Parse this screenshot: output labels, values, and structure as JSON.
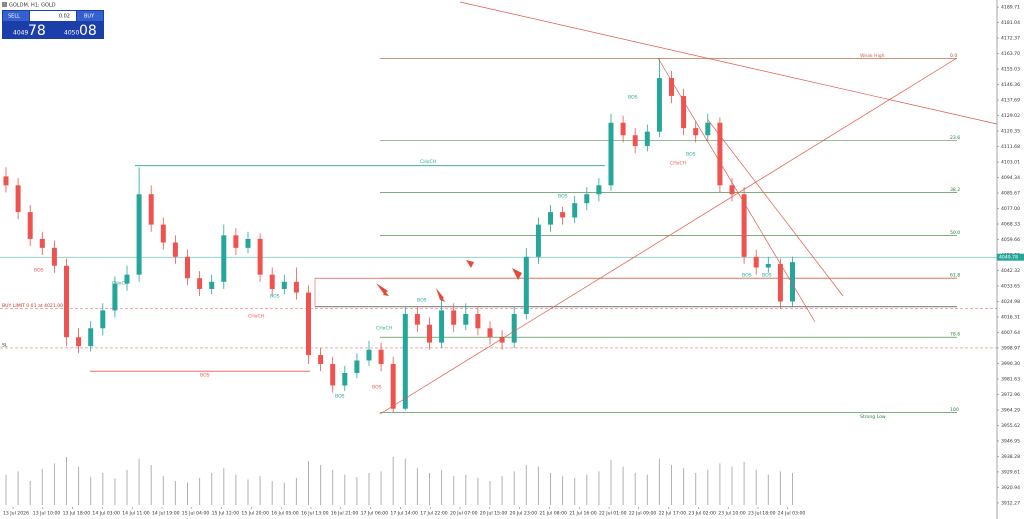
{
  "chart_data": {
    "type": "candlestick",
    "title": "GOLDM, H1: GOLD",
    "up_color": "#26a69a",
    "down_color": "#ef5350",
    "ylim": [
      3910,
      4192
    ],
    "yticks": [
      3912.27,
      3920.94,
      3929.61,
      3938.28,
      3946.95,
      3955.62,
      3964.29,
      3972.96,
      3981.63,
      {
        "value": 3990.3,
        "label": "3990.30"
      },
      3998.97,
      4007.64,
      4016.31,
      4024.98,
      4033.65,
      4042.32,
      4050.99,
      4059.66,
      4068.33,
      {
        "value": 4077,
        "label": "4077.00"
      },
      4085.67,
      4094.34,
      4103.01,
      4111.68,
      4120.35,
      4129.02,
      4137.69,
      4146.36,
      4155.03,
      {
        "value": 4163.7,
        "label": "4163.70"
      },
      4172.37,
      4181.04,
      4189.71
    ],
    "x_labels": [
      "13 Jul 2026",
      "13 Jul 10:00",
      "13 Jul 18:00",
      "14 Jul 03:00",
      "14 Jul 11:00",
      "14 Jul 19:00",
      "15 Jul 04:00",
      "15 Jul 12:00",
      "15 Jul 20:00",
      "16 Jul 05:00",
      "16 Jul 13:00",
      "16 Jul 21:00",
      "17 Jul 06:00",
      "17 Jul 14:00",
      "17 Jul 22:00",
      "20 Jul 07:00",
      "20 Jul 15:00",
      "20 Jul 23:00",
      "21 Jul 08:00",
      "21 Jul 16:00",
      "22 Jul 01:00",
      "22 Jul 09:00",
      "22 Jul 17:00",
      "23 Jul 02:00",
      "23 Jul 10:00",
      "23 Jul 18:00",
      "24 Jul 03:00"
    ],
    "open": [
      4095,
      4090,
      4075,
      4060,
      4055,
      4045,
      4005,
      4000,
      4010,
      4020,
      4035,
      4040,
      4085,
      4068,
      4058,
      4050,
      4038,
      4032,
      4036,
      4062,
      4055,
      4060,
      4040,
      4032,
      4036,
      4030,
      3995,
      3990,
      3978,
      3985,
      3992,
      3998,
      3990,
      3965,
      4018,
      4012,
      4002,
      4020,
      4012,
      4018,
      4010,
      4005,
      4002,
      4018,
      4050,
      4068,
      4075,
      4072,
      4080,
      4085,
      4090,
      4125,
      4118,
      4112,
      4120,
      4150,
      4140,
      4122,
      4118,
      4125,
      4090,
      4085,
      4050,
      4044,
      4046,
      4025
    ],
    "high": [
      4100,
      4094,
      4079,
      4064,
      4059,
      4049,
      4010,
      4014,
      4024,
      4039,
      4045,
      4100,
      4090,
      4072,
      4062,
      4054,
      4042,
      4040,
      4068,
      4066,
      4064,
      4063,
      4044,
      4040,
      4044,
      4034,
      3999,
      3994,
      3989,
      3996,
      4003,
      4002,
      3994,
      4022,
      4022,
      4016,
      4026,
      4024,
      4024,
      4022,
      4014,
      4009,
      4022,
      4055,
      4072,
      4079,
      4078,
      4084,
      4089,
      4094,
      4130,
      4129,
      4122,
      4124,
      4161,
      4154,
      4144,
      4126,
      4130,
      4128,
      4094,
      4089,
      4054,
      4050,
      4049,
      4050
    ],
    "low": [
      4086,
      4071,
      4056,
      4051,
      4041,
      4000,
      3996,
      3997,
      4006,
      4016,
      4031,
      4036,
      4064,
      4054,
      4046,
      4034,
      4028,
      4029,
      4032,
      4051,
      4052,
      4036,
      4028,
      4029,
      4026,
      3990,
      3986,
      3974,
      3975,
      3982,
      3989,
      3986,
      3963,
      3964,
      4008,
      3998,
      3999,
      4008,
      4009,
      4006,
      4001,
      3998,
      3999,
      4015,
      4046,
      4064,
      4068,
      4069,
      4076,
      4081,
      4087,
      4114,
      4108,
      4109,
      4117,
      4136,
      4118,
      4114,
      4115,
      4086,
      4081,
      4046,
      4040,
      4041,
      4021,
      4022
    ],
    "close": [
      4090,
      4075,
      4060,
      4055,
      4045,
      4005,
      4000,
      4010,
      4020,
      4035,
      4040,
      4085,
      4068,
      4058,
      4050,
      4038,
      4032,
      4036,
      4062,
      4055,
      4060,
      4040,
      4032,
      4036,
      4030,
      3995,
      3990,
      3978,
      3985,
      3992,
      3998,
      3990,
      3965,
      4018,
      4012,
      4002,
      4020,
      4012,
      4018,
      4010,
      4005,
      4002,
      4018,
      4050,
      4068,
      4075,
      4072,
      4080,
      4085,
      4090,
      4125,
      4118,
      4112,
      4120,
      4150,
      4140,
      4122,
      4118,
      4125,
      4090,
      4085,
      4050,
      4044,
      4046,
      4025,
      4047
    ],
    "volume": [
      38,
      42,
      30,
      45,
      52,
      60,
      48,
      35,
      40,
      33,
      44,
      58,
      50,
      36,
      30,
      28,
      34,
      40,
      46,
      38,
      32,
      36,
      30,
      28,
      34,
      55,
      50,
      44,
      38,
      35,
      40,
      42,
      60,
      58,
      46,
      40,
      44,
      36,
      38,
      34,
      30,
      36,
      42,
      50,
      48,
      40,
      36,
      34,
      38,
      42,
      56,
      48,
      40,
      38,
      58,
      50,
      46,
      40,
      44,
      52,
      48,
      54,
      44,
      38,
      42,
      40
    ],
    "current_price": 4049.78,
    "fib_color": "#2e7d32",
    "fib_top_color": "#b0552a",
    "fib": [
      {
        "label": "0.0",
        "price": 4161
      },
      {
        "label": "23.6",
        "price": 4115
      },
      {
        "label": "38.2",
        "price": 4086
      },
      {
        "label": "50.0",
        "price": 4062
      },
      {
        "label": "61.8",
        "price": 4038
      },
      {
        "label": "78.6",
        "price": 4005
      },
      {
        "label": "100",
        "price": 3963
      }
    ],
    "weak_high": "Weak High",
    "strong_low": "Strong Low",
    "choch": {
      "label": "CHoCH",
      "price": 4101
    },
    "bos": {
      "label": "BOS",
      "price": 3986
    },
    "entry_price": 4022,
    "order": {
      "label": "BUY LIMIT 0.01 at 4021.00",
      "price": 4021
    },
    "sl": {
      "label": "SL",
      "price": 3999
    },
    "annotations": [
      "BOS",
      "BOS",
      "CHoCH",
      "BOS",
      "CHoCH",
      "BOS",
      "BOS",
      "CHoCH",
      "BOS",
      "CHoCH",
      "BOS",
      "BOS",
      "BOS",
      "BOS"
    ]
  },
  "trade_panel": {
    "sell": "SELL",
    "buy": "BUY",
    "lot": "0.02",
    "sell_main": "4049",
    "sell_big": "78",
    "buy_main": "4050",
    "buy_big": "08"
  }
}
